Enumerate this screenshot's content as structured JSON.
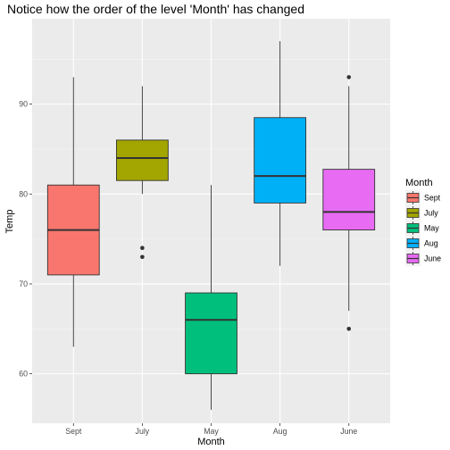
{
  "chart_data": {
    "type": "boxplot",
    "title": "Notice how the order of the level 'Month' has changed",
    "xlabel": "Month",
    "ylabel": "Temp",
    "ylim": [
      54.5,
      99.5
    ],
    "y_ticks": [
      60,
      70,
      80,
      90
    ],
    "grid": true,
    "legend": {
      "title": "Month",
      "position": "right"
    },
    "categories": [
      "Sept",
      "July",
      "May",
      "Aug",
      "June"
    ],
    "series": [
      {
        "name": "Sept",
        "color": "#F8766D",
        "whisker_low": 63,
        "q1": 71,
        "median": 76,
        "q3": 81,
        "whisker_high": 93,
        "outliers": []
      },
      {
        "name": "July",
        "color": "#A3A500",
        "whisker_low": 80,
        "q1": 81.5,
        "median": 84,
        "q3": 86,
        "whisker_high": 92,
        "outliers": [
          73,
          74
        ]
      },
      {
        "name": "May",
        "color": "#00BF7D",
        "whisker_low": 56,
        "q1": 60,
        "median": 66,
        "q3": 69,
        "whisker_high": 81,
        "outliers": []
      },
      {
        "name": "Aug",
        "color": "#00B0F6",
        "whisker_low": 72,
        "q1": 79,
        "median": 82,
        "q3": 88.5,
        "whisker_high": 97,
        "outliers": []
      },
      {
        "name": "June",
        "color": "#E76BF3",
        "whisker_low": 67,
        "q1": 76,
        "median": 78,
        "q3": 82.75,
        "whisker_high": 92,
        "outliers": [
          65,
          93
        ]
      }
    ]
  }
}
